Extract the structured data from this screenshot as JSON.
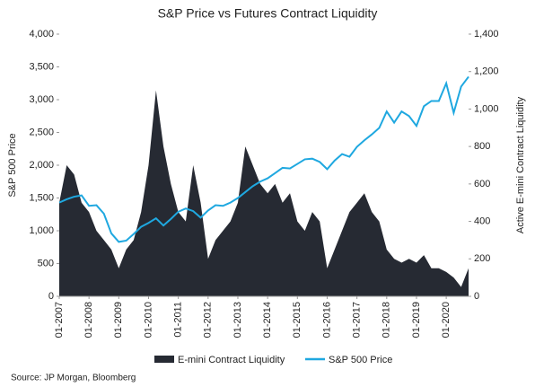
{
  "chart_data": {
    "type": "area_line",
    "title": "S&P Price vs Futures Contract Liquidity",
    "y_label": "S&P 500 Price",
    "y2_label": "Active E-mini Contract Liquidity",
    "source": "Source: JP Morgan, Bloomberg",
    "x": [
      "01-2007",
      "04-2007",
      "07-2007",
      "10-2007",
      "01-2008",
      "04-2008",
      "07-2008",
      "10-2008",
      "01-2009",
      "04-2009",
      "07-2009",
      "10-2009",
      "01-2010",
      "04-2010",
      "07-2010",
      "10-2010",
      "01-2011",
      "04-2011",
      "07-2011",
      "10-2011",
      "01-2012",
      "04-2012",
      "07-2012",
      "10-2012",
      "01-2013",
      "04-2013",
      "07-2013",
      "10-2013",
      "01-2014",
      "04-2014",
      "07-2014",
      "10-2014",
      "01-2015",
      "04-2015",
      "07-2015",
      "10-2015",
      "01-2016",
      "04-2016",
      "07-2016",
      "10-2016",
      "01-2017",
      "04-2017",
      "07-2017",
      "10-2017",
      "01-2018",
      "04-2018",
      "07-2018",
      "10-2018",
      "01-2019",
      "04-2019",
      "07-2019",
      "10-2019",
      "01-2020",
      "04-2020",
      "07-2020",
      "10-2020"
    ],
    "xticks": [
      "01-2007",
      "01-2008",
      "01-2009",
      "01-2010",
      "01-2011",
      "01-2012",
      "01-2013",
      "01-2014",
      "01-2015",
      "01-2016",
      "01-2017",
      "01-2018",
      "01-2019",
      "01-2020"
    ],
    "series": [
      {
        "name": "E-mini Contract Liquidity",
        "color": "#262a33",
        "axis": "y2",
        "kind": "area",
        "values": [
          500,
          700,
          650,
          500,
          450,
          350,
          300,
          250,
          150,
          250,
          300,
          450,
          700,
          1100,
          800,
          600,
          450,
          400,
          700,
          500,
          200,
          300,
          350,
          400,
          500,
          800,
          700,
          600,
          550,
          600,
          500,
          550,
          400,
          350,
          450,
          400,
          150,
          250,
          350,
          450,
          500,
          550,
          450,
          400,
          250,
          200,
          180,
          200,
          180,
          220,
          150,
          150,
          130,
          100,
          50,
          150
        ]
      },
      {
        "name": "S&P 500 Price",
        "color": "#1fa8e0",
        "axis": "y",
        "kind": "line",
        "values": [
          1430,
          1480,
          1520,
          1540,
          1380,
          1390,
          1260,
          960,
          830,
          850,
          950,
          1060,
          1120,
          1190,
          1080,
          1180,
          1290,
          1340,
          1300,
          1200,
          1310,
          1390,
          1380,
          1430,
          1500,
          1590,
          1680,
          1750,
          1800,
          1880,
          1960,
          1950,
          2020,
          2090,
          2100,
          2050,
          1940,
          2070,
          2170,
          2130,
          2280,
          2380,
          2470,
          2570,
          2820,
          2650,
          2820,
          2750,
          2600,
          2900,
          2980,
          2980,
          3250,
          2800,
          3200,
          3350
        ]
      }
    ],
    "ylim": [
      0,
      4000
    ],
    "yticks": [
      0,
      500,
      {
        "value": 1000,
        "label": "1,000"
      },
      {
        "value": 1500,
        "label": "1,500"
      },
      {
        "value": 2000,
        "label": "2,000"
      },
      {
        "value": 2500,
        "label": "2,500"
      },
      {
        "value": 3000,
        "label": "3,000"
      },
      {
        "value": 3500,
        "label": "3,500"
      },
      {
        "value": 4000,
        "label": "4,000"
      }
    ],
    "y2lim": [
      0,
      1400
    ],
    "y2ticks": [
      0,
      200,
      400,
      600,
      800,
      {
        "value": 1000,
        "label": "1,000"
      },
      {
        "value": 1200,
        "label": "1,200"
      },
      {
        "value": 1400,
        "label": "1,400"
      }
    ]
  }
}
